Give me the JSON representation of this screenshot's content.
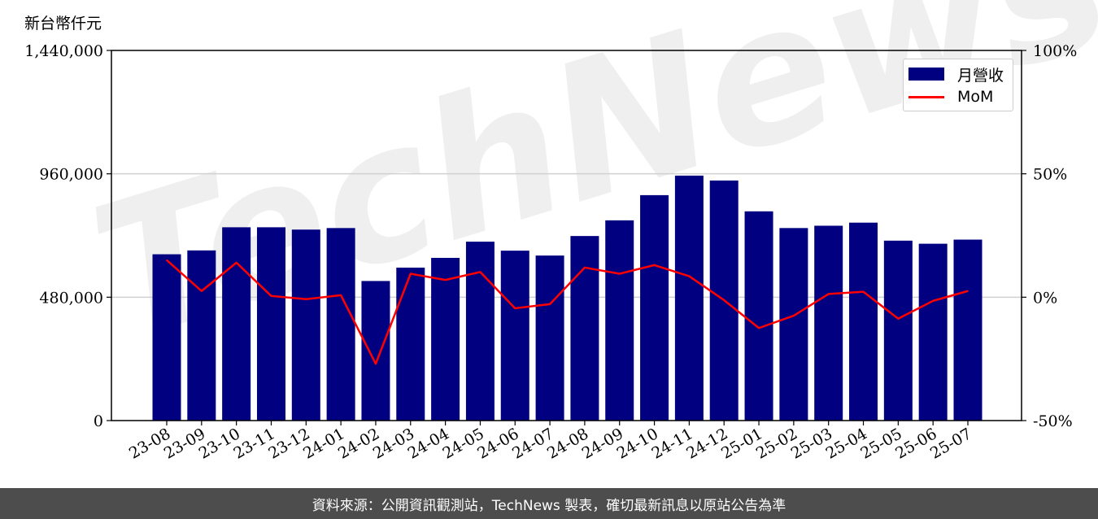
{
  "unit_label": "新台幣仟元",
  "footer_text": "資料來源：公開資訊觀測站，TechNews 製表，確切最新訊息以原站公告為準",
  "watermark": "TechNews",
  "colors": {
    "bar": "#000080",
    "line": "#ff0000",
    "grid": "#d0d0d0",
    "footer_bg": "#4d4d4d"
  },
  "legend": {
    "bar_label": "月營收",
    "line_label": "MoM",
    "placement": "top-right"
  },
  "chart_data": {
    "type": "bar",
    "categories": [
      "23-08",
      "23-09",
      "23-10",
      "23-11",
      "23-12",
      "24-01",
      "24-02",
      "24-03",
      "24-04",
      "24-05",
      "24-06",
      "24-07",
      "24-08",
      "24-09",
      "24-10",
      "24-11",
      "24-12",
      "25-01",
      "25-02",
      "25-03",
      "25-04",
      "25-05",
      "25-06",
      "25-07"
    ],
    "series": [
      {
        "name": "月營收",
        "type": "bar",
        "axis": "left",
        "values": [
          647000,
          662000,
          752000,
          752000,
          743000,
          749000,
          543000,
          595000,
          633000,
          696000,
          661000,
          642000,
          718000,
          779000,
          877000,
          953000,
          934000,
          814000,
          749000,
          758000,
          770000,
          700000,
          688000,
          704000
        ]
      },
      {
        "name": "MoM",
        "type": "line",
        "axis": "right",
        "values": [
          15,
          2.5,
          14,
          0.5,
          -0.8,
          0.8,
          -27,
          9.5,
          7,
          10.2,
          -4.5,
          -2.8,
          12,
          9.5,
          13,
          8.5,
          -1.2,
          -12.5,
          -7.5,
          1.3,
          2.2,
          -8.7,
          -1.5,
          2.5
        ]
      }
    ],
    "yleft": {
      "ticks": [
        0,
        480000,
        960000,
        1440000
      ],
      "tick_labels": [
        "0",
        "480,000",
        "960,000",
        "1,440,000"
      ],
      "range": [
        0,
        1440000
      ]
    },
    "yright": {
      "ticks": [
        -50,
        0,
        50,
        100
      ],
      "tick_labels": [
        "-50%",
        "0%",
        "50%",
        "100%"
      ],
      "range": [
        -50,
        100
      ]
    },
    "grid": true
  }
}
